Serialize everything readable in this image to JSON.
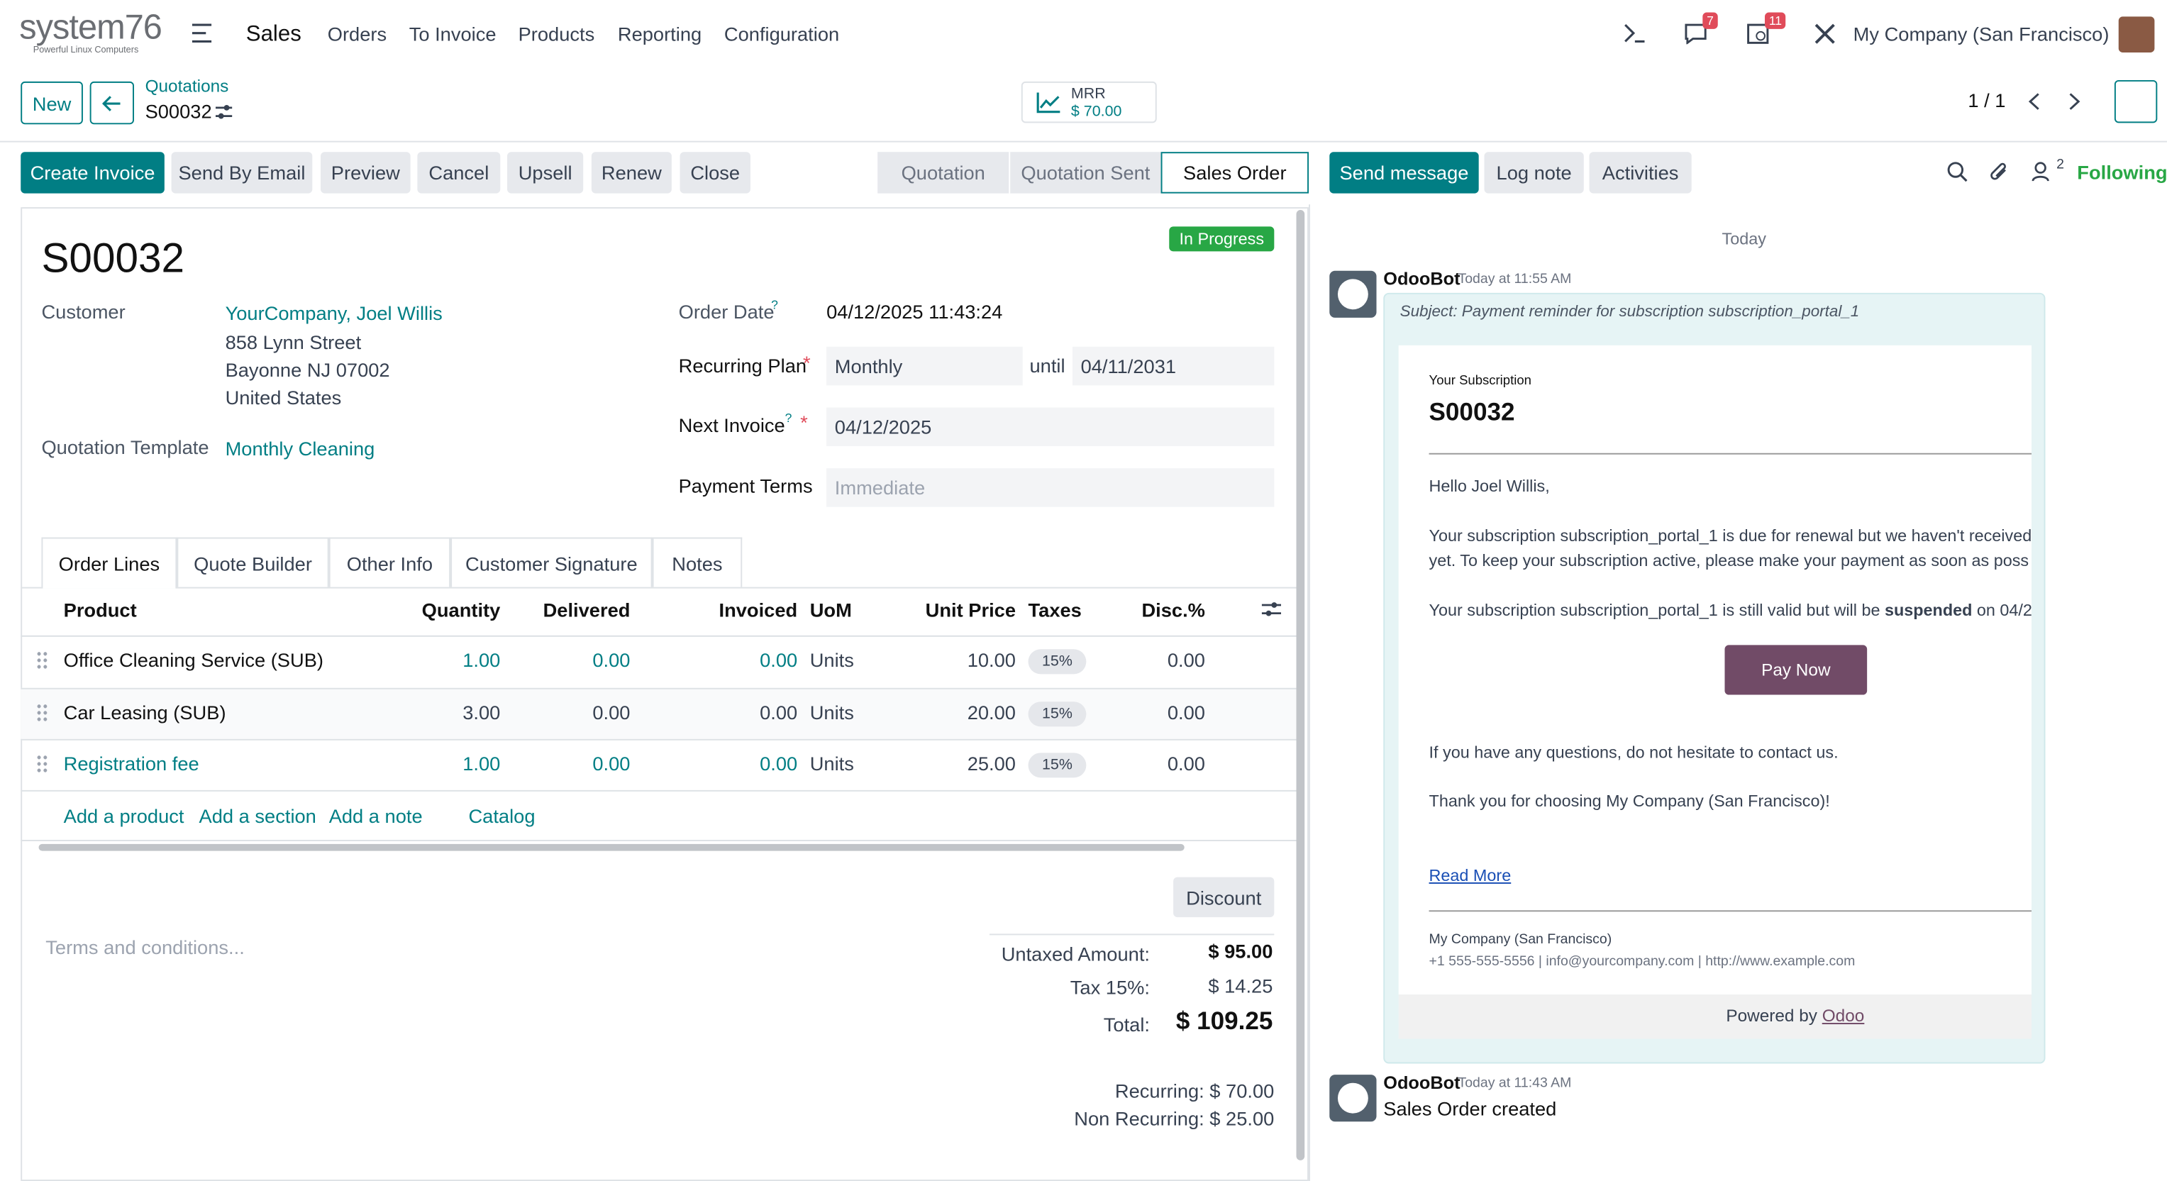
{
  "brand": {
    "logo": "system76",
    "tagline": "Powerful Linux Computers"
  },
  "nav": {
    "app": "Sales",
    "menu": [
      "Orders",
      "To Invoice",
      "Products",
      "Reporting",
      "Configuration"
    ],
    "badges": {
      "messages": "7",
      "activities": "11"
    },
    "company": "My Company (San Francisco)"
  },
  "breadcrumb": {
    "new": "New",
    "parent": "Quotations",
    "current": "S00032",
    "pager": "1 / 1"
  },
  "mrr": {
    "label": "MRR",
    "value": "$ 70.00"
  },
  "actions": [
    "Create Invoice",
    "Send By Email",
    "Preview",
    "Cancel",
    "Upsell",
    "Renew",
    "Close"
  ],
  "stages": [
    "Quotation",
    "Quotation Sent",
    "Sales Order"
  ],
  "chatter": {
    "actions": [
      "Send message",
      "Log note",
      "Activities"
    ],
    "followers": "2",
    "following": "Following",
    "day": "Today",
    "messages": [
      {
        "author": "OdooBot",
        "time": "Today at 11:55 AM",
        "subject": "Subject: Payment reminder for subscription subscription_portal_1",
        "email": {
          "heading": "Your Subscription",
          "name": "S00032",
          "greeting": "Hello Joel Willis,",
          "para1": [
            "Your subscription subscription_portal_1 is due for renewal but we haven't received",
            "yet. To keep your subscription active, please make your payment as soon as poss"
          ],
          "para2": {
            "before": "Your subscription subscription_portal_1 is still valid but will be ",
            "bold": "suspended",
            "after": " on 04/2"
          },
          "button": "Pay Now",
          "questions": "If you have any questions, do not hesitate to contact us.",
          "thanks": "Thank you for choosing My Company (San Francisco)!",
          "read_more": "Read More",
          "company": "My Company (San Francisco)",
          "contact": "+1 555-555-5556 | info@yourcompany.com | http://www.example.com",
          "powered_by": "Powered by",
          "odoo": "Odoo"
        }
      },
      {
        "author": "OdooBot",
        "time": "Today at 11:43 AM",
        "body": "Sales Order created"
      }
    ]
  },
  "form": {
    "status": "In Progress",
    "name": "S00032",
    "customer": {
      "label": "Customer",
      "value": "YourCompany, Joel Willis",
      "address": [
        "858 Lynn Street",
        "Bayonne NJ 07002",
        "United States"
      ]
    },
    "template": {
      "label": "Quotation Template",
      "value": "Monthly Cleaning"
    },
    "order_date": {
      "label": "Order Date",
      "help": "?",
      "value": "04/12/2025 11:43:24"
    },
    "recurring_plan": {
      "label": "Recurring Plan",
      "required": "*",
      "value": "Monthly",
      "until": "until",
      "end": "04/11/2031"
    },
    "next_invoice": {
      "label": "Next Invoice",
      "help": "?",
      "required": "*",
      "value": "04/12/2025"
    },
    "payment_terms": {
      "label": "Payment Terms",
      "placeholder": "Immediate"
    },
    "tabs": [
      "Order Lines",
      "Quote Builder",
      "Other Info",
      "Customer Signature",
      "Notes"
    ]
  },
  "table": {
    "headers": [
      "Product",
      "Quantity",
      "Delivered",
      "Invoiced",
      "UoM",
      "Unit Price",
      "Taxes",
      "Disc.%"
    ],
    "rows": [
      [
        "Office Cleaning Service (SUB)",
        "1.00",
        "0.00",
        "0.00",
        "Units",
        "10.00",
        "15%",
        "0.00"
      ],
      [
        "Car Leasing (SUB)",
        "3.00",
        "0.00",
        "0.00",
        "Units",
        "20.00",
        "15%",
        "0.00"
      ],
      [
        "Registration fee",
        "1.00",
        "0.00",
        "0.00",
        "Units",
        "25.00",
        "15%",
        "0.00"
      ]
    ],
    "links": [
      "Add a product",
      "Add a section",
      "Add a note",
      "Catalog"
    ]
  },
  "totals": {
    "discount": "Discount",
    "terms_placeholder": "Terms and conditions...",
    "lines": [
      [
        "Untaxed Amount:",
        "$ 95.00"
      ],
      [
        "Tax 15%:",
        "$ 14.25"
      ],
      [
        "Total:",
        "$ 109.25"
      ]
    ],
    "recurring": "Recurring: $ 70.00",
    "non_recurring": "Non Recurring: $ 25.00"
  }
}
